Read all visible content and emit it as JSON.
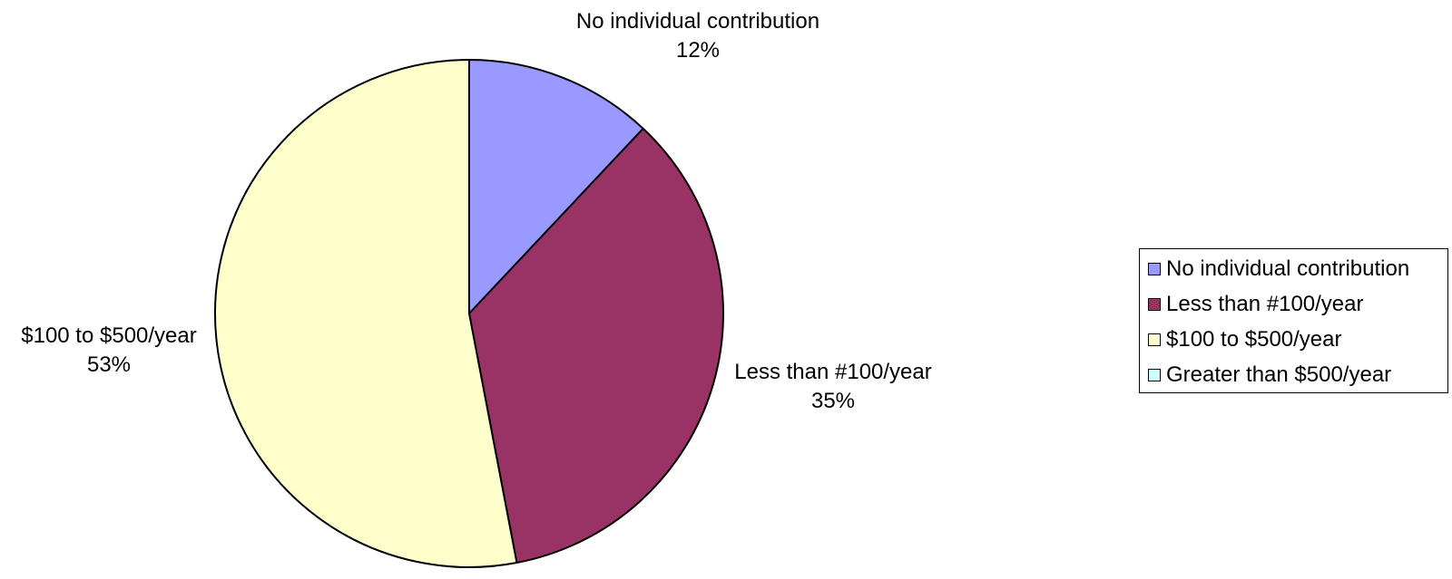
{
  "chart_data": {
    "type": "pie",
    "title": "",
    "start_angle_deg": 0,
    "direction": "clockwise",
    "slices": [
      {
        "name": "No individual contribution",
        "value": 12,
        "label": "12%",
        "color": "#9999FF"
      },
      {
        "name": "Less than #100/year",
        "value": 35,
        "label": "35%",
        "color": "#993366"
      },
      {
        "name": "$100 to $500/year",
        "value": 53,
        "label": "53%",
        "color": "#FFFFCC"
      },
      {
        "name": "Greater than $500/year",
        "value": 0,
        "label": "",
        "color": "#CCFFFF"
      }
    ],
    "legend": {
      "position": "right",
      "items": [
        {
          "label": "No individual contribution",
          "color": "#9999FF"
        },
        {
          "label": "Less than #100/year",
          "color": "#993366"
        },
        {
          "label": "$100 to $500/year",
          "color": "#FFFFCC"
        },
        {
          "label": "Greater than $500/year",
          "color": "#CCFFFF"
        }
      ]
    }
  }
}
